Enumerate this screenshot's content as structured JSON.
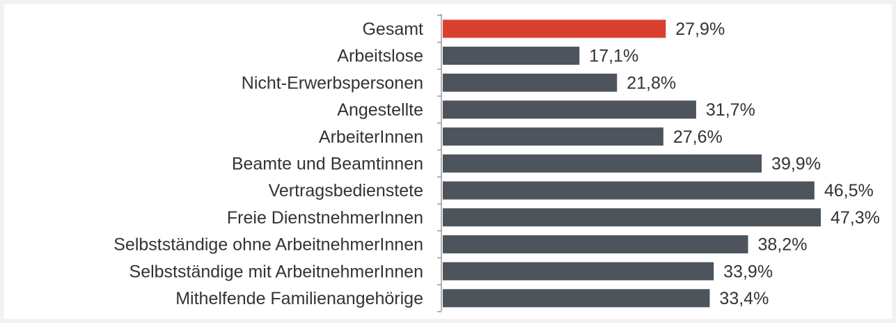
{
  "chart_data": {
    "type": "bar",
    "orientation": "horizontal",
    "categories": [
      "Gesamt",
      "Arbeitslose",
      "Nicht-Erwerbspersonen",
      "Angestellte",
      "ArbeiterInnen",
      "Beamte und Beamtinnen",
      "Vertragsbedienstete",
      "Freie DienstnehmerInnen",
      "Selbstständige ohne ArbeitnehmerInnen",
      "Selbstständige mit ArbeitnehmerInnen",
      "Mithelfende Familienangehörige"
    ],
    "values": [
      27.9,
      17.1,
      21.8,
      31.7,
      27.6,
      39.9,
      46.5,
      47.3,
      38.2,
      33.9,
      33.4
    ],
    "value_labels": [
      "27,9%",
      "17,1%",
      "21,8%",
      "31,7%",
      "27,6%",
      "39,9%",
      "46,5%",
      "47,3%",
      "38,2%",
      "33,9%",
      "33,4%"
    ],
    "colors": [
      "#d9412f",
      "#4d545b",
      "#4d545b",
      "#4d545b",
      "#4d545b",
      "#4d545b",
      "#4d545b",
      "#4d545b",
      "#4d545b",
      "#4d545b",
      "#4d545b"
    ]
  }
}
